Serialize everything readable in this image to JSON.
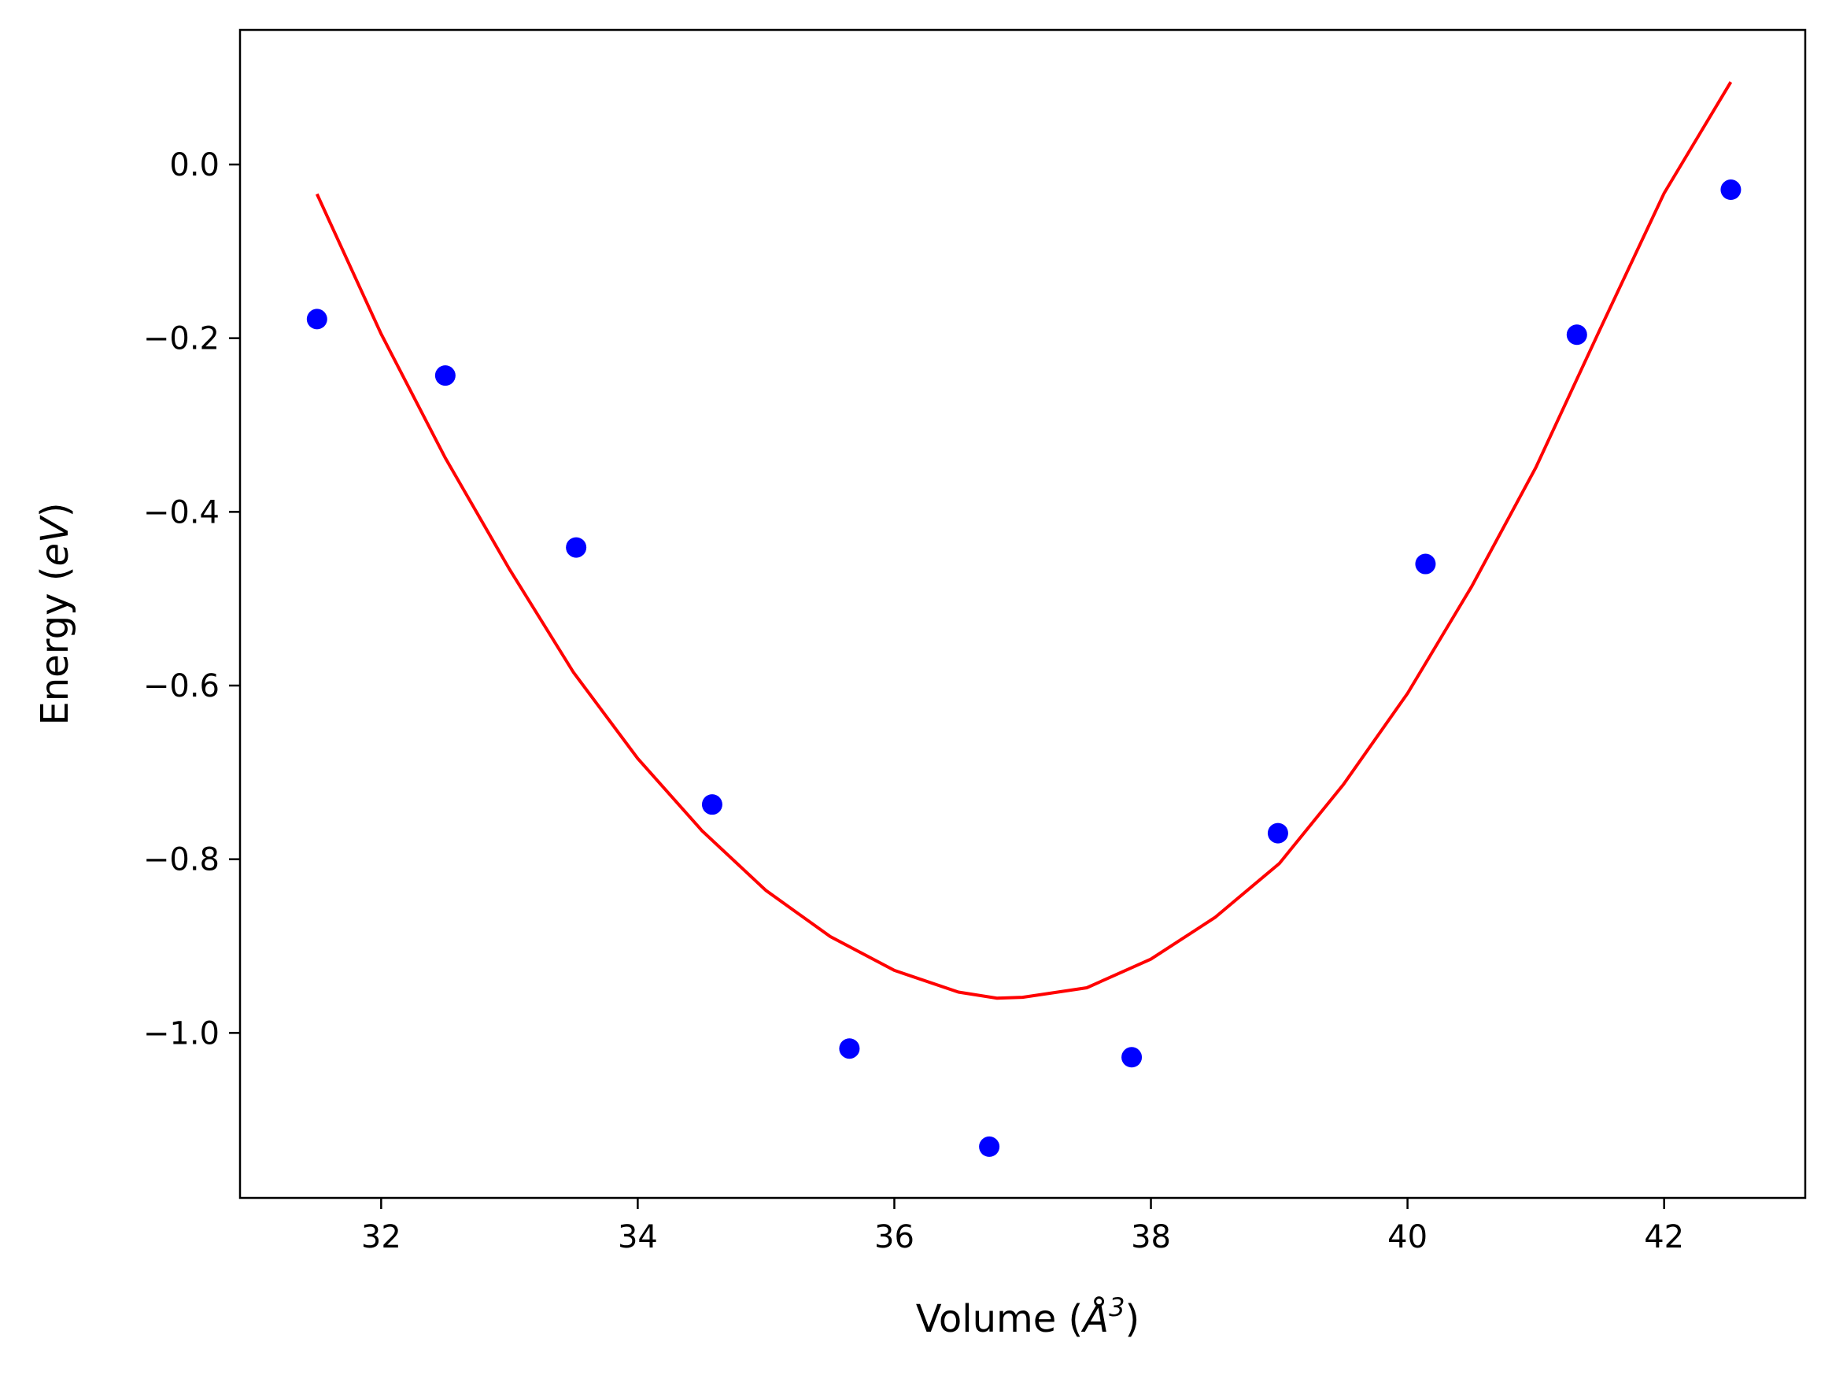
{
  "chart_data": {
    "type": "scatter",
    "title": "",
    "xlabel": {
      "pre": "Volume (",
      "symbol": "Å",
      "sup": "3",
      "post": ")"
    },
    "ylabel": {
      "pre": "Energy (",
      "unit": "eV",
      "post": ")"
    },
    "xlim": [
      30.9,
      43.1
    ],
    "ylim": [
      -1.19,
      0.155
    ],
    "xticks": [
      32,
      34,
      36,
      38,
      40,
      42
    ],
    "xtick_labels": [
      "32",
      "34",
      "36",
      "38",
      "40",
      "42"
    ],
    "yticks": [
      0.0,
      -0.2,
      -0.4,
      -0.6,
      -0.8,
      -1.0
    ],
    "ytick_labels": [
      "0.0",
      "−0.2",
      "−0.4",
      "−0.6",
      "−0.8",
      "−1.0"
    ],
    "grid": false,
    "series": [
      {
        "kind": "points",
        "color": "#0000ff",
        "x": [
          31.5,
          32.5,
          33.52,
          34.58,
          35.65,
          36.74,
          37.85,
          38.99,
          40.14,
          41.32,
          42.52
        ],
        "y": [
          -0.178,
          -0.243,
          -0.441,
          -0.737,
          -1.018,
          -1.131,
          -1.028,
          -0.77,
          -0.46,
          -0.196,
          -0.029
        ]
      },
      {
        "kind": "line",
        "color": "#ff0000",
        "x": [
          31.5,
          32.0,
          32.5,
          33.0,
          33.5,
          34.0,
          34.5,
          35.0,
          35.5,
          36.0,
          36.5,
          36.8,
          37.0,
          37.5,
          38.0,
          38.5,
          39.0,
          39.5,
          40.0,
          40.5,
          41.0,
          41.5,
          42.0,
          42.52
        ],
        "y": [
          -0.034,
          -0.195,
          -0.338,
          -0.466,
          -0.585,
          -0.684,
          -0.767,
          -0.836,
          -0.889,
          -0.928,
          -0.953,
          -0.96,
          -0.959,
          -0.948,
          -0.915,
          -0.867,
          -0.805,
          -0.714,
          -0.609,
          -0.486,
          -0.349,
          -0.19,
          -0.033,
          0.095
        ]
      }
    ]
  }
}
